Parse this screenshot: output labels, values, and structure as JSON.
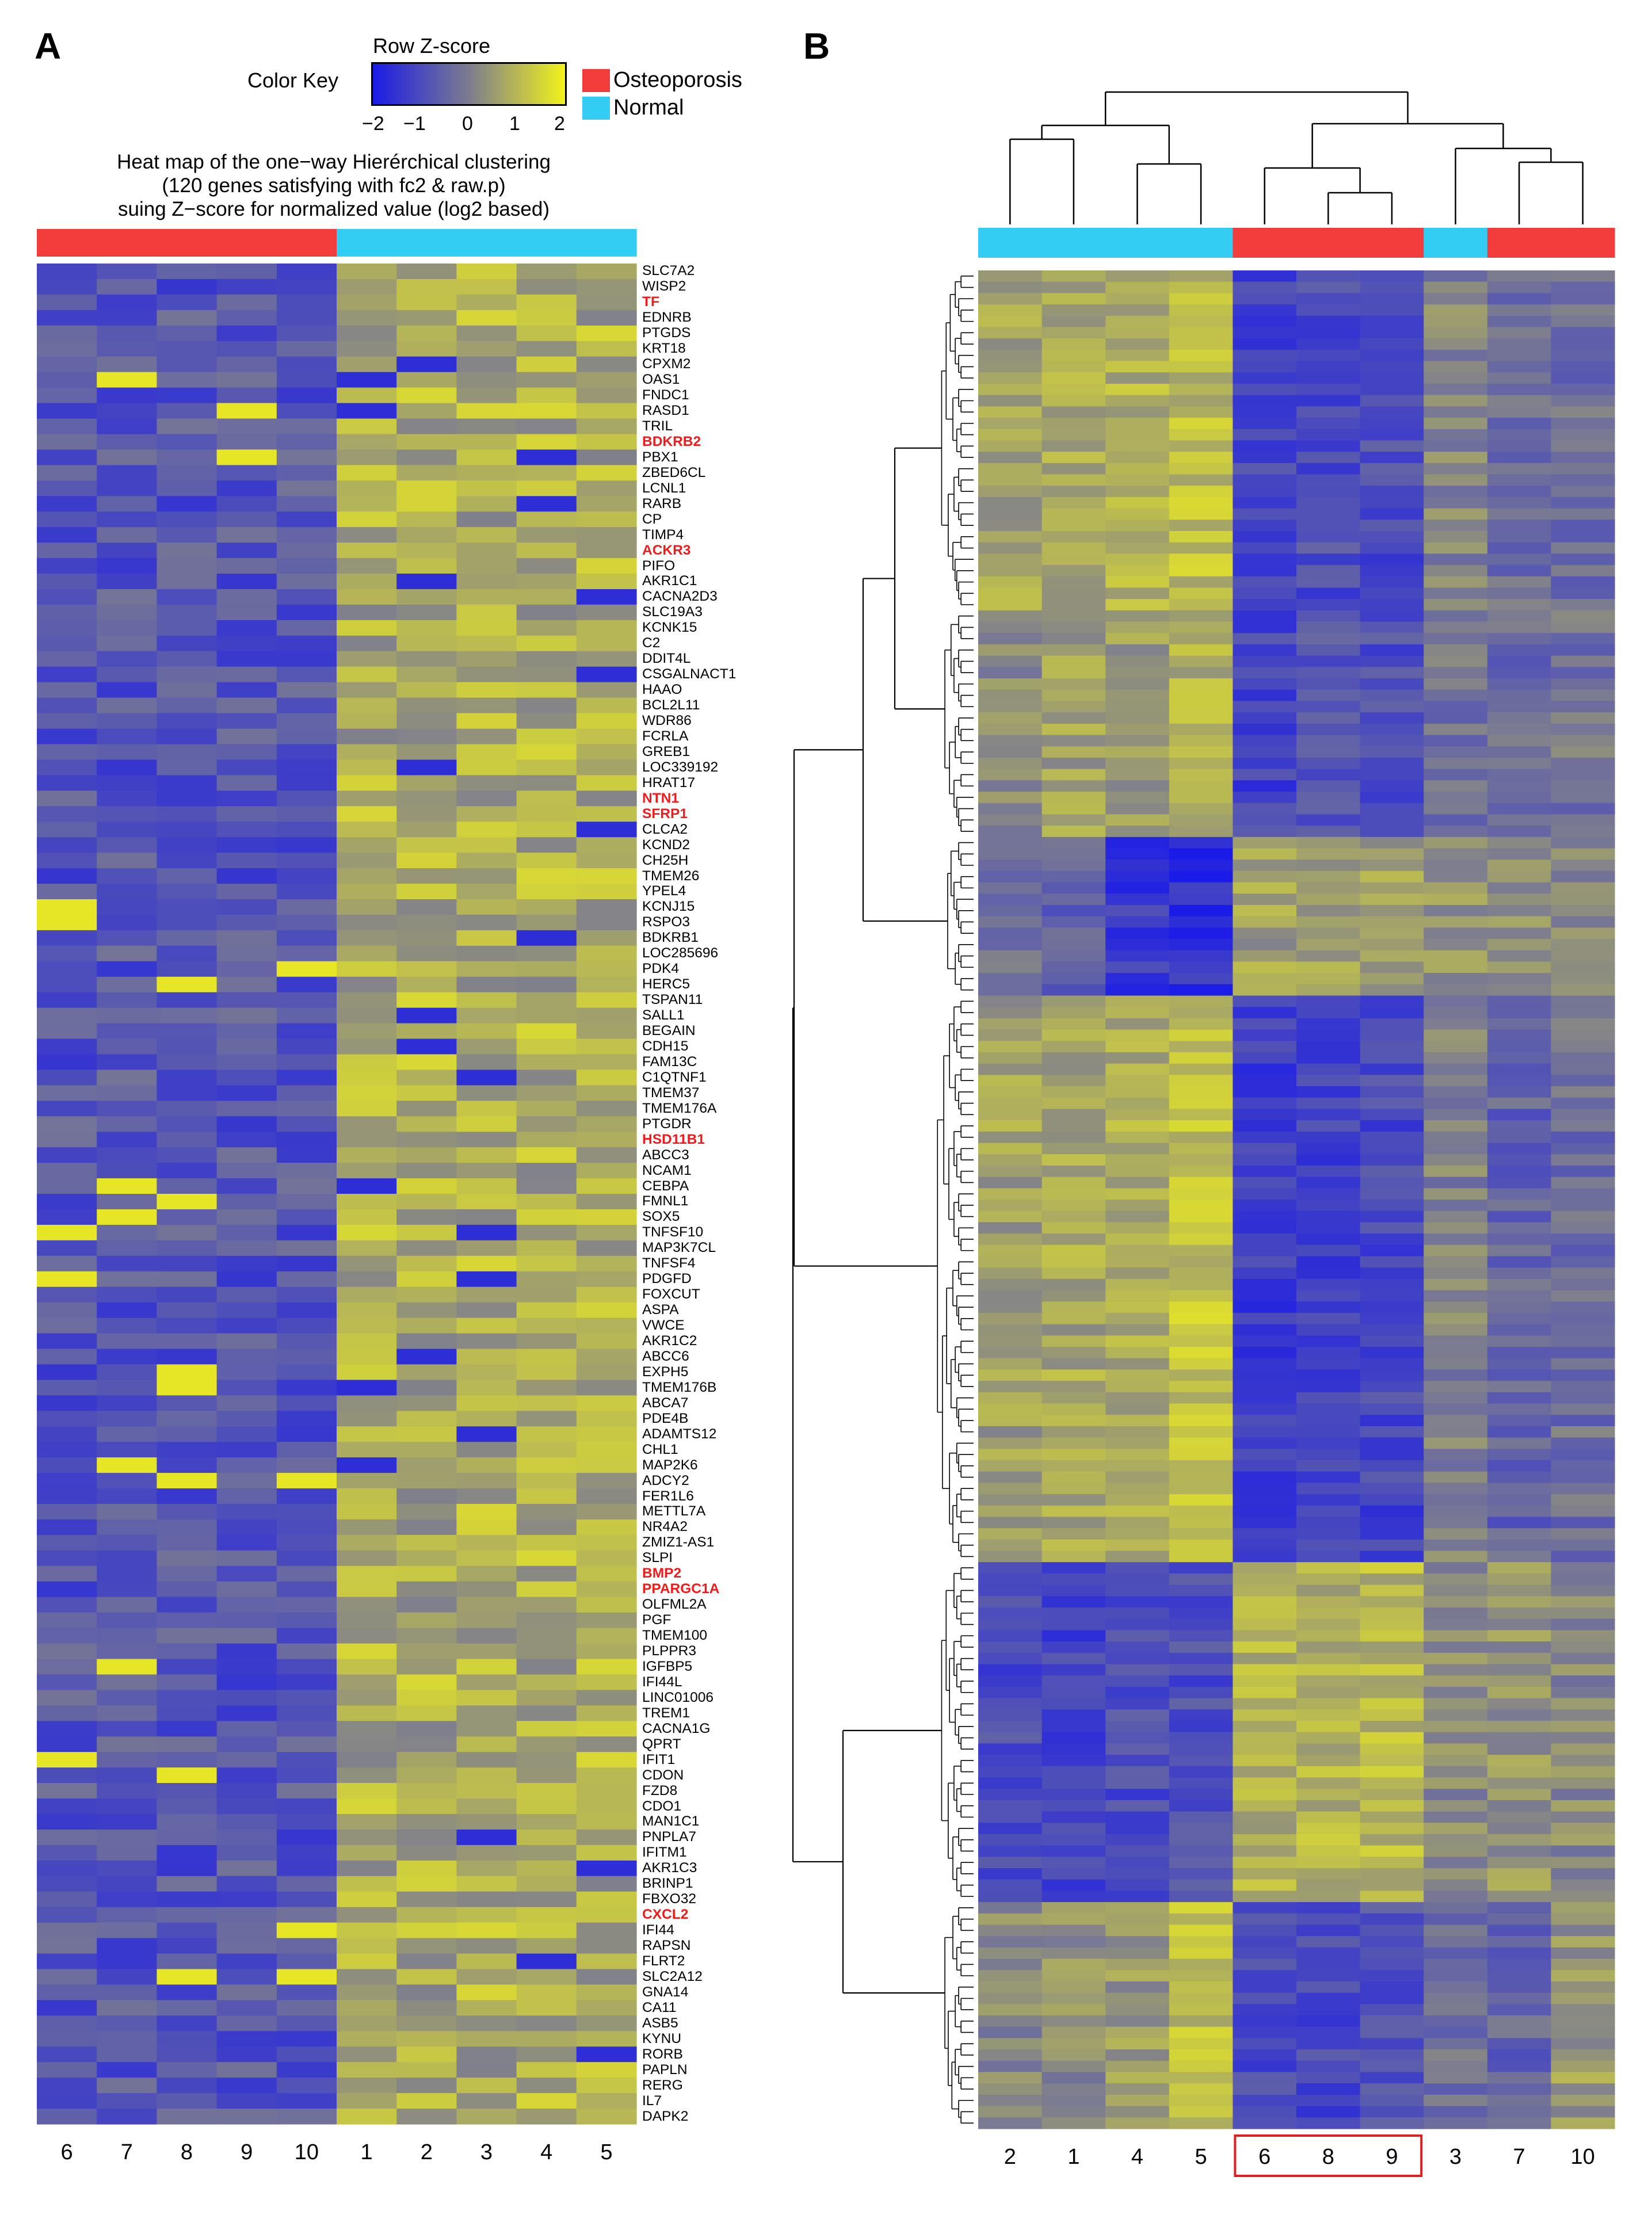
{
  "panel_a": {
    "letter": "A",
    "color_key": {
      "label": "Color Key",
      "title": "Row Z-score",
      "ticks": [
        "−2",
        "−1",
        "0",
        "1",
        "2"
      ],
      "colors": {
        "low": "#1b1be8",
        "mid": "#7c7c90",
        "high": "#f2f21a"
      }
    },
    "legend": [
      {
        "label": "Osteoporosis",
        "color": "#f23c3c"
      },
      {
        "label": "Normal",
        "color": "#33ccf2"
      }
    ],
    "subtitle": [
      "Heat map of the one−way Hierérchical clustering",
      "(120 genes satisfying with fc2 & raw.p)",
      "suing Z−score for normalized value (log2 based)"
    ],
    "sample_groups": [
      "Osteoporosis",
      "Osteoporosis",
      "Osteoporosis",
      "Osteoporosis",
      "Osteoporosis",
      "Normal",
      "Normal",
      "Normal",
      "Normal",
      "Normal"
    ],
    "column_labels": [
      "6",
      "7",
      "8",
      "9",
      "10",
      "1",
      "2",
      "3",
      "4",
      "5"
    ],
    "genes": [
      "SLC7A2",
      "WISP2",
      "TF",
      "EDNRB",
      "PTGDS",
      "KRT18",
      "CPXM2",
      "OAS1",
      "FNDC1",
      "RASD1",
      "TRIL",
      "BDKRB2",
      "PBX1",
      "ZBED6CL",
      "LCNL1",
      "RARB",
      "CP",
      "TIMP4",
      "ACKR3",
      "PIFO",
      "AKR1C1",
      "CACNA2D3",
      "SLC19A3",
      "KCNK15",
      "C2",
      "DDIT4L",
      "CSGALNACT1",
      "HAAO",
      "BCL2L11",
      "WDR86",
      "FCRLA",
      "GREB1",
      "LOC339192",
      "HRAT17",
      "NTN1",
      "SFRP1",
      "CLCA2",
      "KCND2",
      "CH25H",
      "TMEM26",
      "YPEL4",
      "KCNJ15",
      "RSPO3",
      "BDKRB1",
      "LOC285696",
      "PDK4",
      "HERC5",
      "TSPAN11",
      "SALL1",
      "BEGAIN",
      "CDH15",
      "FAM13C",
      "C1QTNF1",
      "TMEM37",
      "TMEM176A",
      "PTGDR",
      "HSD11B1",
      "ABCC3",
      "NCAM1",
      "CEBPA",
      "FMNL1",
      "SOX5",
      "TNFSF10",
      "MAP3K7CL",
      "TNFSF4",
      "PDGFD",
      "FOXCUT",
      "ASPA",
      "VWCE",
      "AKR1C2",
      "ABCC6",
      "EXPH5",
      "TMEM176B",
      "ABCA7",
      "PDE4B",
      "ADAMTS12",
      "CHL1",
      "MAP2K6",
      "ADCY2",
      "FER1L6",
      "METTL7A",
      "NR4A2",
      "ZMIZ1-AS1",
      "SLPI",
      "BMP2",
      "PPARGC1A",
      "OLFML2A",
      "PGF",
      "TMEM100",
      "PLPPR3",
      "IGFBP5",
      "IFI44L",
      "LINC01006",
      "TREM1",
      "CACNA1G",
      "QPRT",
      "IFIT1",
      "CDON",
      "FZD8",
      "CDO1",
      "MAN1C1",
      "PNPLA7",
      "IFITM1",
      "AKR1C3",
      "BRINP1",
      "FBXO32",
      "CXCL2",
      "IFI44",
      "RAPSN",
      "FLRT2",
      "SLC2A12",
      "GNA14",
      "CA11",
      "ASB5",
      "KYNU",
      "RORB",
      "PAPLN",
      "RERG",
      "IL7",
      "DAPK2"
    ],
    "highlighted_genes": [
      "TF",
      "BDKRB2",
      "ACKR3",
      "NTN1",
      "SFRP1",
      "HSD11B1",
      "BMP2",
      "PPARGC1A",
      "CXCL2"
    ]
  },
  "panel_b": {
    "letter": "B",
    "sample_groups": [
      "Normal",
      "Normal",
      "Normal",
      "Normal",
      "Osteoporosis",
      "Osteoporosis",
      "Osteoporosis",
      "Normal",
      "Osteoporosis",
      "Osteoporosis"
    ],
    "column_labels": [
      "2",
      "1",
      "4",
      "5",
      "6",
      "8",
      "9",
      "3",
      "7",
      "10"
    ],
    "boxed_columns": [
      "6",
      "8",
      "9"
    ],
    "box_color": "#e02020"
  }
}
